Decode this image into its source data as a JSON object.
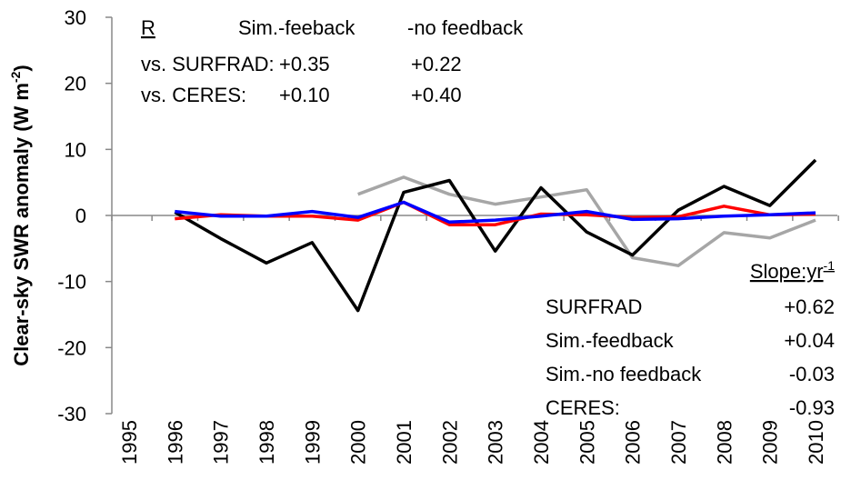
{
  "chart_data": {
    "type": "line",
    "y_label": {
      "text": "Clear-sky SWR anomaly (W m",
      "sup": "-2",
      "end": ")"
    },
    "categories": [
      "1995",
      "1996",
      "1997",
      "1998",
      "1999",
      "2000",
      "2001",
      "2002",
      "2003",
      "2004",
      "2005",
      "2006",
      "2007",
      "2008",
      "2009",
      "2010"
    ],
    "series": [
      {
        "name": "SURFRAD",
        "color": "#000000",
        "slope": "+0.62",
        "values": [
          null,
          0.5,
          -3.5,
          -7.2,
          -4.1,
          -14.4,
          3.5,
          5.3,
          -5.4,
          4.2,
          -2.5,
          -6.0,
          0.8,
          4.4,
          1.5,
          8.4
        ]
      },
      {
        "name": "Sim.-feedback",
        "color": "#ff0000",
        "slope": "+0.04",
        "values": [
          null,
          -0.5,
          0.1,
          -0.1,
          -0.1,
          -0.7,
          2.0,
          -1.4,
          -1.4,
          0.2,
          0.1,
          -0.3,
          -0.2,
          1.4,
          0.1,
          0.2
        ]
      },
      {
        "name": "Sim.-no feedback",
        "color": "#0000ff",
        "slope": "-0.03",
        "values": [
          null,
          0.6,
          -0.1,
          -0.1,
          0.6,
          -0.3,
          2.0,
          -1.0,
          -0.7,
          -0.1,
          0.6,
          -0.6,
          -0.5,
          -0.1,
          0.1,
          0.4
        ]
      },
      {
        "name": "CERES:",
        "color": "#a6a6a6",
        "slope": "-0.93",
        "values": [
          null,
          null,
          null,
          null,
          null,
          3.2,
          5.8,
          3.2,
          1.7,
          2.8,
          3.9,
          -6.4,
          -7.6,
          -2.6,
          -3.4,
          -0.7
        ]
      }
    ],
    "draw_order": [
      3,
      0,
      1,
      2
    ],
    "ylim": [
      -30,
      30
    ],
    "yticks": [
      -30,
      -20,
      -10,
      0,
      10,
      20,
      30
    ],
    "slope_header": {
      "text": "Slope:yr",
      "sup": "-1"
    },
    "r_table": {
      "header": [
        "R",
        "Sim.-feeback",
        "-no feedback"
      ],
      "rows": [
        [
          "vs. SURFRAD:",
          "+0.35",
          "+0.22"
        ],
        [
          "vs. CERES:",
          "+0.10",
          "+0.40"
        ]
      ],
      "colors": [
        "#000000",
        "#ff0000",
        "#0000ff"
      ]
    }
  }
}
